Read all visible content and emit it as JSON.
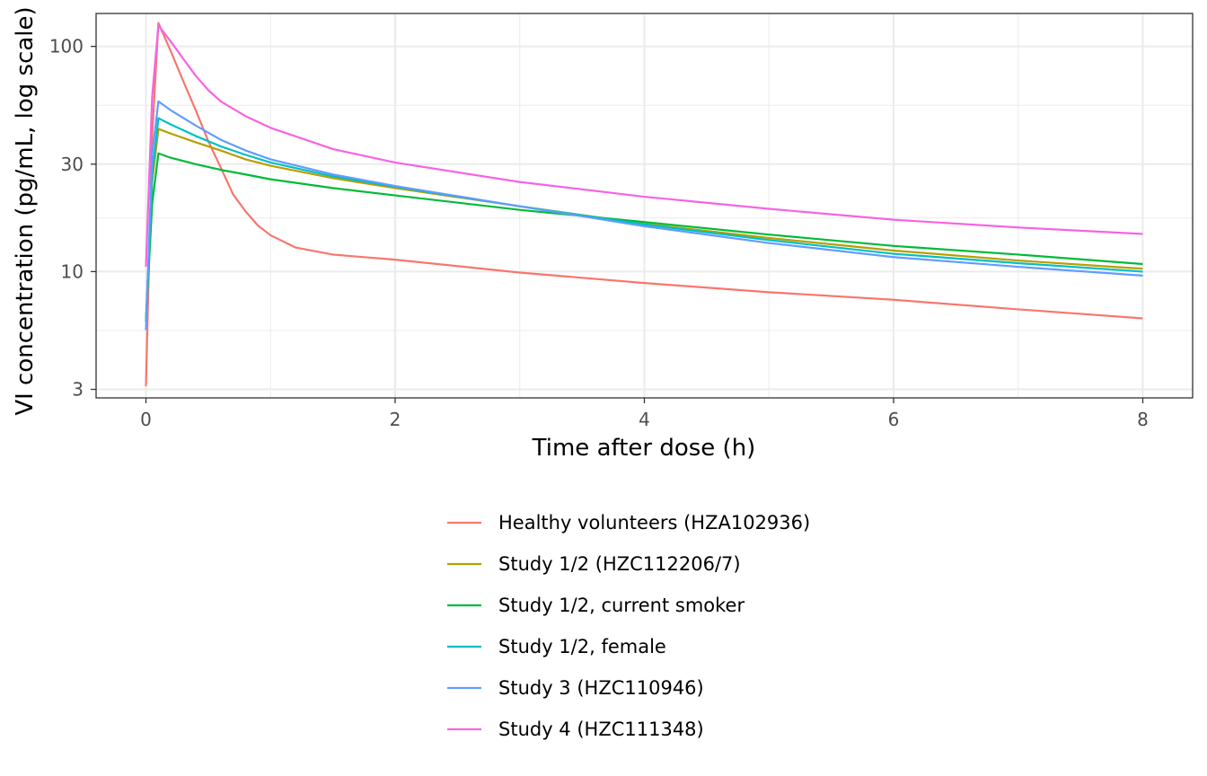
{
  "chart_data": {
    "type": "line",
    "title": "",
    "xlabel": "Time after dose (h)",
    "ylabel": "VI concentration (pg/mL, log scale)",
    "xlim": [
      -0.4,
      8.4
    ],
    "ylim": [
      2.75,
      140
    ],
    "yscale": "log",
    "x_ticks": [
      0,
      2,
      4,
      6,
      8
    ],
    "x_tick_labels": [
      "0",
      "2",
      "4",
      "6",
      "8"
    ],
    "x_minor_ticks": [
      1,
      3,
      5,
      7
    ],
    "y_ticks": [
      3,
      10,
      30,
      100
    ],
    "y_tick_labels": [
      "3",
      "10",
      "30",
      "100"
    ],
    "y_minor_ticks": [
      5.477,
      17.32,
      54.77
    ],
    "grid": true,
    "legend_position": "bottom",
    "series": [
      {
        "name": "Healthy volunteers (HZA102936)",
        "color": "#F8766D",
        "points": [
          [
            0,
            3.1
          ],
          [
            0.05,
            40
          ],
          [
            0.1,
            127
          ],
          [
            0.2,
            95
          ],
          [
            0.3,
            70
          ],
          [
            0.4,
            52
          ],
          [
            0.5,
            38
          ],
          [
            0.6,
            29
          ],
          [
            0.7,
            22
          ],
          [
            0.8,
            18.5
          ],
          [
            0.9,
            16
          ],
          [
            1.0,
            14.5
          ],
          [
            1.2,
            12.8
          ],
          [
            1.5,
            11.9
          ],
          [
            2.0,
            11.3
          ],
          [
            3.0,
            9.9
          ],
          [
            4.0,
            8.9
          ],
          [
            5.0,
            8.1
          ],
          [
            6.0,
            7.5
          ],
          [
            7.0,
            6.8
          ],
          [
            8.0,
            6.2
          ]
        ]
      },
      {
        "name": "Study 1/2 (HZC112206/7)",
        "color": "#B79F00",
        "points": [
          [
            0,
            6
          ],
          [
            0.05,
            25
          ],
          [
            0.1,
            43
          ],
          [
            0.2,
            41
          ],
          [
            0.4,
            37.5
          ],
          [
            0.6,
            34.5
          ],
          [
            0.8,
            31.5
          ],
          [
            1.0,
            29.5
          ],
          [
            1.5,
            26
          ],
          [
            2.0,
            23.5
          ],
          [
            3.0,
            19.5
          ],
          [
            4.0,
            16.3
          ],
          [
            5.0,
            14.1
          ],
          [
            6.0,
            12.4
          ],
          [
            7.0,
            11.2
          ],
          [
            8.0,
            10.3
          ]
        ]
      },
      {
        "name": "Study 1/2, current smoker",
        "color": "#00BA38",
        "points": [
          [
            0,
            6
          ],
          [
            0.05,
            20
          ],
          [
            0.1,
            33.5
          ],
          [
            0.2,
            32
          ],
          [
            0.4,
            30
          ],
          [
            0.6,
            28.3
          ],
          [
            0.8,
            27
          ],
          [
            1.0,
            25.7
          ],
          [
            1.5,
            23.5
          ],
          [
            2.0,
            21.8
          ],
          [
            3.0,
            18.8
          ],
          [
            4.0,
            16.6
          ],
          [
            5.0,
            14.6
          ],
          [
            6.0,
            13.0
          ],
          [
            7.0,
            11.9
          ],
          [
            8.0,
            10.8
          ]
        ]
      },
      {
        "name": "Study 1/2, female",
        "color": "#00BFC4",
        "points": [
          [
            0,
            6
          ],
          [
            0.05,
            27
          ],
          [
            0.1,
            48
          ],
          [
            0.2,
            45
          ],
          [
            0.4,
            40
          ],
          [
            0.6,
            36
          ],
          [
            0.8,
            33
          ],
          [
            1.0,
            30.5
          ],
          [
            1.5,
            26.5
          ],
          [
            2.0,
            23.8
          ],
          [
            3.0,
            19.5
          ],
          [
            4.0,
            16.2
          ],
          [
            5.0,
            13.8
          ],
          [
            6.0,
            12.0
          ],
          [
            7.0,
            10.9
          ],
          [
            8.0,
            10.0
          ]
        ]
      },
      {
        "name": "Study 3 (HZC110946)",
        "color": "#619CFF",
        "points": [
          [
            0,
            5.5
          ],
          [
            0.05,
            33
          ],
          [
            0.1,
            57
          ],
          [
            0.2,
            52
          ],
          [
            0.4,
            44.5
          ],
          [
            0.6,
            38.5
          ],
          [
            0.8,
            34.5
          ],
          [
            1.0,
            31.5
          ],
          [
            1.5,
            27
          ],
          [
            2.0,
            24
          ],
          [
            3.0,
            19.5
          ],
          [
            4.0,
            15.9
          ],
          [
            5.0,
            13.4
          ],
          [
            6.0,
            11.6
          ],
          [
            7.0,
            10.5
          ],
          [
            8.0,
            9.6
          ]
        ]
      },
      {
        "name": "Study 4 (HZC111348)",
        "color": "#F564E3",
        "points": [
          [
            0,
            10.5
          ],
          [
            0.05,
            60
          ],
          [
            0.1,
            124
          ],
          [
            0.2,
            105
          ],
          [
            0.3,
            88
          ],
          [
            0.4,
            74
          ],
          [
            0.5,
            64
          ],
          [
            0.6,
            57
          ],
          [
            0.8,
            49
          ],
          [
            1.0,
            43.5
          ],
          [
            1.5,
            35
          ],
          [
            2.0,
            30.5
          ],
          [
            3.0,
            25
          ],
          [
            4.0,
            21.5
          ],
          [
            5.0,
            19
          ],
          [
            6.0,
            17
          ],
          [
            7.0,
            15.7
          ],
          [
            8.0,
            14.7
          ]
        ]
      }
    ]
  }
}
